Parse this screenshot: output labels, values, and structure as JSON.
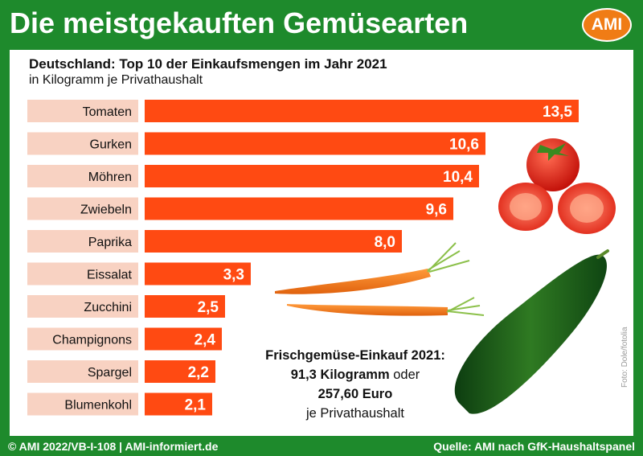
{
  "header": {
    "title": "Die meistgekauften Gemüsearten",
    "logo_text": "AMI"
  },
  "chart_data": {
    "type": "bar",
    "orientation": "horizontal",
    "title": "Deutschland: Top 10 der Einkaufsmengen im Jahr 2021",
    "subtitle": "in Kilogramm je Privathaushalt",
    "categories": [
      "Tomaten",
      "Gurken",
      "Möhren",
      "Zwiebeln",
      "Paprika",
      "Eissalat",
      "Zucchini",
      "Champignons",
      "Spargel",
      "Blumenkohl"
    ],
    "values": [
      13.5,
      10.6,
      10.4,
      9.6,
      8.0,
      3.3,
      2.5,
      2.4,
      2.2,
      2.1
    ],
    "value_labels": [
      "13,5",
      "10,6",
      "10,4",
      "9,6",
      "8,0",
      "3,3",
      "2,5",
      "2,4",
      "2,2",
      "2,1"
    ],
    "xlim": [
      0,
      13.5
    ],
    "grid": false,
    "legend": "none",
    "colors": {
      "bar": "#ff4a12",
      "label_box": "#f8d2c2",
      "background": "#1e8a2c"
    }
  },
  "callout": {
    "line1": "Frischgemüse-Einkauf 2021:",
    "line2_bold": "91,3 Kilogramm",
    "line2_rest": " oder",
    "line3": "257,60 Euro",
    "line4": "je Privathaushalt"
  },
  "photo_credit": "Foto: Dole/fotolia",
  "footer": {
    "left": "© AMI 2022/VB-I-108 | AMI-informiert.de",
    "right": "Quelle: AMI nach GfK-Haushaltspanel"
  }
}
